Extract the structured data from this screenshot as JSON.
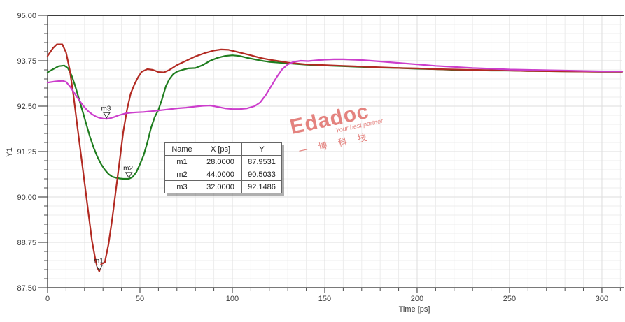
{
  "axes": {
    "x_label": "Time [ps]",
    "y_label": "Y1"
  },
  "marker_table": {
    "headers": [
      "Name",
      "X [ps]",
      "Y"
    ],
    "rows": [
      {
        "name": "m1",
        "x": "28.0000",
        "y": "87.9531"
      },
      {
        "name": "m2",
        "x": "44.0000",
        "y": "90.5033"
      },
      {
        "name": "m3",
        "x": "32.0000",
        "y": "92.1486"
      }
    ]
  },
  "watermark": {
    "brand": "Edadoc",
    "tagline": "Your best partner",
    "chinese": "一 博 科 技",
    "color": "#e4837f"
  },
  "chart_data": {
    "type": "line",
    "title": "",
    "xlabel": "Time [ps]",
    "ylabel": "Y1",
    "xlim": [
      0,
      311
    ],
    "ylim": [
      87.5,
      95.0
    ],
    "x_major_ticks": [
      0,
      50,
      100,
      150,
      200,
      250,
      300
    ],
    "x_tick_labels": [
      "0",
      "50",
      "100",
      "150",
      "200",
      "250",
      "300"
    ],
    "y_major_ticks": [
      95.0,
      93.75,
      92.5,
      91.25,
      90.0,
      88.75,
      87.5
    ],
    "y_tick_labels": [
      "95.00",
      "93.75",
      "92.50",
      "91.25",
      "90.00",
      "88.75",
      "87.50"
    ],
    "x_minor_step": 10,
    "y_minor_step": 0.25,
    "grid": true,
    "legend": "none",
    "series": [
      {
        "name": "green",
        "color": "#1f7d1f",
        "points": [
          [
            0,
            93.43
          ],
          [
            3,
            93.52
          ],
          [
            6,
            93.6
          ],
          [
            9,
            93.62
          ],
          [
            11,
            93.55
          ],
          [
            13,
            93.35
          ],
          [
            15,
            93.05
          ],
          [
            17,
            92.7
          ],
          [
            19,
            92.35
          ],
          [
            21,
            92.0
          ],
          [
            23,
            91.65
          ],
          [
            25,
            91.35
          ],
          [
            27,
            91.1
          ],
          [
            29,
            90.9
          ],
          [
            31,
            90.75
          ],
          [
            33,
            90.63
          ],
          [
            35,
            90.56
          ],
          [
            37,
            90.53
          ],
          [
            39,
            90.51
          ],
          [
            41,
            90.5
          ],
          [
            44,
            90.5
          ],
          [
            46,
            90.55
          ],
          [
            48,
            90.68
          ],
          [
            50,
            90.9
          ],
          [
            52,
            91.15
          ],
          [
            54,
            91.5
          ],
          [
            56,
            91.9
          ],
          [
            58,
            92.2
          ],
          [
            60,
            92.4
          ],
          [
            62,
            92.7
          ],
          [
            64,
            93.05
          ],
          [
            66,
            93.25
          ],
          [
            68,
            93.38
          ],
          [
            70,
            93.45
          ],
          [
            73,
            93.5
          ],
          [
            76,
            93.54
          ],
          [
            80,
            93.55
          ],
          [
            84,
            93.63
          ],
          [
            88,
            93.75
          ],
          [
            92,
            93.83
          ],
          [
            96,
            93.88
          ],
          [
            100,
            93.9
          ],
          [
            104,
            93.88
          ],
          [
            108,
            93.83
          ],
          [
            112,
            93.79
          ],
          [
            116,
            93.75
          ],
          [
            120,
            93.72
          ],
          [
            125,
            93.7
          ],
          [
            130,
            93.68
          ],
          [
            140,
            93.64
          ],
          [
            150,
            93.62
          ],
          [
            160,
            93.6
          ],
          [
            170,
            93.58
          ],
          [
            180,
            93.56
          ],
          [
            190,
            93.55
          ],
          [
            200,
            93.53
          ],
          [
            210,
            93.52
          ],
          [
            220,
            93.5
          ],
          [
            230,
            93.49
          ],
          [
            240,
            93.48
          ],
          [
            250,
            93.48
          ],
          [
            260,
            93.47
          ],
          [
            280,
            93.46
          ],
          [
            300,
            93.45
          ],
          [
            311,
            93.45
          ]
        ]
      },
      {
        "name": "red",
        "color": "#b22a22",
        "points": [
          [
            0,
            93.88
          ],
          [
            3,
            94.1
          ],
          [
            5,
            94.2
          ],
          [
            8,
            94.2
          ],
          [
            10,
            93.98
          ],
          [
            12,
            93.5
          ],
          [
            14,
            92.8
          ],
          [
            16,
            92.0
          ],
          [
            18,
            91.2
          ],
          [
            20,
            90.4
          ],
          [
            22,
            89.6
          ],
          [
            24,
            88.8
          ],
          [
            26,
            88.25
          ],
          [
            27,
            88.05
          ],
          [
            28,
            87.95
          ],
          [
            29,
            88.15
          ],
          [
            31,
            88.2
          ],
          [
            33,
            88.7
          ],
          [
            35,
            89.4
          ],
          [
            37,
            90.2
          ],
          [
            39,
            91.0
          ],
          [
            41,
            91.8
          ],
          [
            43,
            92.4
          ],
          [
            45,
            92.85
          ],
          [
            47,
            93.1
          ],
          [
            49,
            93.3
          ],
          [
            51,
            93.45
          ],
          [
            54,
            93.52
          ],
          [
            57,
            93.5
          ],
          [
            60,
            93.44
          ],
          [
            63,
            93.43
          ],
          [
            66,
            93.5
          ],
          [
            70,
            93.63
          ],
          [
            75,
            93.75
          ],
          [
            80,
            93.87
          ],
          [
            85,
            93.96
          ],
          [
            90,
            94.03
          ],
          [
            94,
            94.06
          ],
          [
            98,
            94.05
          ],
          [
            102,
            94.0
          ],
          [
            106,
            93.95
          ],
          [
            110,
            93.9
          ],
          [
            115,
            93.83
          ],
          [
            120,
            93.78
          ],
          [
            125,
            93.74
          ],
          [
            130,
            93.7
          ],
          [
            140,
            93.65
          ],
          [
            150,
            93.63
          ],
          [
            160,
            93.61
          ],
          [
            170,
            93.59
          ],
          [
            180,
            93.57
          ],
          [
            190,
            93.55
          ],
          [
            200,
            93.54
          ],
          [
            210,
            93.52
          ],
          [
            220,
            93.51
          ],
          [
            230,
            93.5
          ],
          [
            240,
            93.49
          ],
          [
            250,
            93.48
          ],
          [
            260,
            93.47
          ],
          [
            280,
            93.46
          ],
          [
            300,
            93.45
          ],
          [
            311,
            93.45
          ]
        ]
      },
      {
        "name": "magenta",
        "color": "#cc3ecc",
        "points": [
          [
            0,
            93.15
          ],
          [
            4,
            93.18
          ],
          [
            8,
            93.2
          ],
          [
            10,
            93.17
          ],
          [
            12,
            93.05
          ],
          [
            14,
            92.9
          ],
          [
            16,
            92.75
          ],
          [
            18,
            92.6
          ],
          [
            20,
            92.47
          ],
          [
            22,
            92.36
          ],
          [
            24,
            92.28
          ],
          [
            26,
            92.22
          ],
          [
            28,
            92.18
          ],
          [
            30,
            92.16
          ],
          [
            32,
            92.15
          ],
          [
            34,
            92.17
          ],
          [
            36,
            92.2
          ],
          [
            38,
            92.24
          ],
          [
            40,
            92.27
          ],
          [
            42,
            92.3
          ],
          [
            45,
            92.32
          ],
          [
            48,
            92.33
          ],
          [
            52,
            92.34
          ],
          [
            56,
            92.36
          ],
          [
            60,
            92.38
          ],
          [
            65,
            92.41
          ],
          [
            70,
            92.44
          ],
          [
            75,
            92.46
          ],
          [
            80,
            92.49
          ],
          [
            84,
            92.51
          ],
          [
            88,
            92.52
          ],
          [
            92,
            92.48
          ],
          [
            96,
            92.44
          ],
          [
            100,
            92.42
          ],
          [
            104,
            92.42
          ],
          [
            108,
            92.44
          ],
          [
            112,
            92.5
          ],
          [
            115,
            92.6
          ],
          [
            118,
            92.8
          ],
          [
            121,
            93.05
          ],
          [
            124,
            93.3
          ],
          [
            127,
            93.52
          ],
          [
            130,
            93.65
          ],
          [
            133,
            93.72
          ],
          [
            137,
            93.75
          ],
          [
            141,
            93.74
          ],
          [
            145,
            93.76
          ],
          [
            150,
            93.78
          ],
          [
            155,
            93.79
          ],
          [
            160,
            93.79
          ],
          [
            165,
            93.78
          ],
          [
            170,
            93.77
          ],
          [
            175,
            93.75
          ],
          [
            180,
            93.73
          ],
          [
            190,
            93.69
          ],
          [
            200,
            93.65
          ],
          [
            210,
            93.61
          ],
          [
            220,
            93.58
          ],
          [
            230,
            93.55
          ],
          [
            240,
            93.53
          ],
          [
            250,
            93.51
          ],
          [
            260,
            93.5
          ],
          [
            270,
            93.49
          ],
          [
            280,
            93.48
          ],
          [
            290,
            93.47
          ],
          [
            300,
            93.46
          ],
          [
            311,
            93.46
          ]
        ]
      }
    ],
    "markers": [
      {
        "label": "m1",
        "x": 28,
        "y": 87.9531
      },
      {
        "label": "m2",
        "x": 44,
        "y": 90.5033
      },
      {
        "label": "m3",
        "x": 32,
        "y": 92.1486
      }
    ]
  }
}
